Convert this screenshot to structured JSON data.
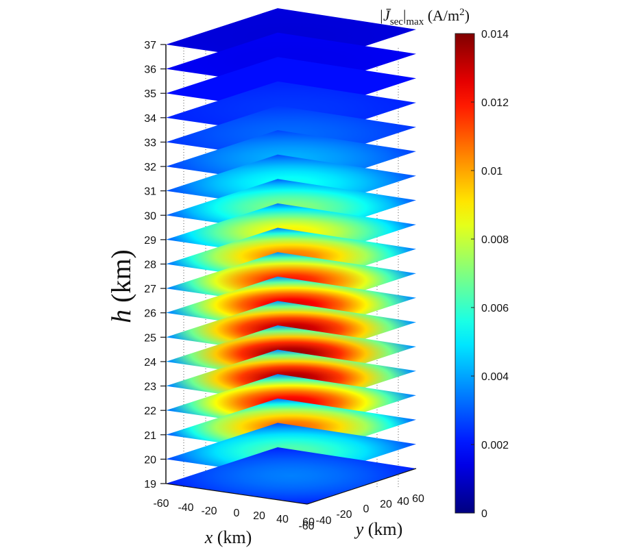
{
  "chart_data": {
    "type": "heatmap",
    "subtype": "stacked horizontal slices (3D)",
    "slice_heights": [
      19,
      20,
      21,
      22,
      23,
      24,
      25,
      26,
      27,
      28,
      29,
      30,
      31,
      32,
      33,
      34,
      35,
      36,
      37
    ],
    "peak_values": [
      0.0035,
      0.0065,
      0.011,
      0.0128,
      0.0138,
      0.014,
      0.0136,
      0.013,
      0.0122,
      0.0108,
      0.009,
      0.0072,
      0.0055,
      0.0042,
      0.0032,
      0.0025,
      0.0019,
      0.0015,
      0.0012
    ],
    "edge_values": [
      0.0022,
      0.0028,
      0.0032,
      0.0035,
      0.0037,
      0.0038,
      0.0038,
      0.0037,
      0.0036,
      0.0035,
      0.0033,
      0.0031,
      0.0029,
      0.0027,
      0.0025,
      0.0022,
      0.0019,
      0.0016,
      0.0013
    ],
    "x": {
      "label_var": "x",
      "label_unit": " (km)",
      "ticks": [
        "-60",
        "-40",
        "-20",
        "0",
        "20",
        "40",
        "60"
      ],
      "range": [
        -60,
        60
      ]
    },
    "y": {
      "label_var": "y",
      "label_unit": " (km)",
      "ticks": [
        "-60",
        "-40",
        "-20",
        "0",
        "20",
        "40",
        "60"
      ],
      "range": [
        -60,
        60
      ]
    },
    "z": {
      "label_var": "h",
      "label_unit": " (km)",
      "ticks": [
        "19",
        "20",
        "21",
        "22",
        "23",
        "24",
        "25",
        "26",
        "27",
        "28",
        "29",
        "30",
        "31",
        "32",
        "33",
        "34",
        "35",
        "36",
        "37"
      ],
      "range": [
        19,
        37
      ]
    },
    "colorbar": {
      "title_main": "|J̄",
      "title_sub": "sec",
      "title_bar": "|",
      "title_max": "max",
      "title_unit": " (A/m",
      "title_sup": "2",
      "title_close": ")",
      "ticks": [
        "0",
        "0.002",
        "0.004",
        "0.006",
        "0.008",
        "0.01",
        "0.012",
        "0.014"
      ],
      "range": [
        0,
        0.014
      ],
      "colormap": "jet"
    },
    "grid": true
  }
}
